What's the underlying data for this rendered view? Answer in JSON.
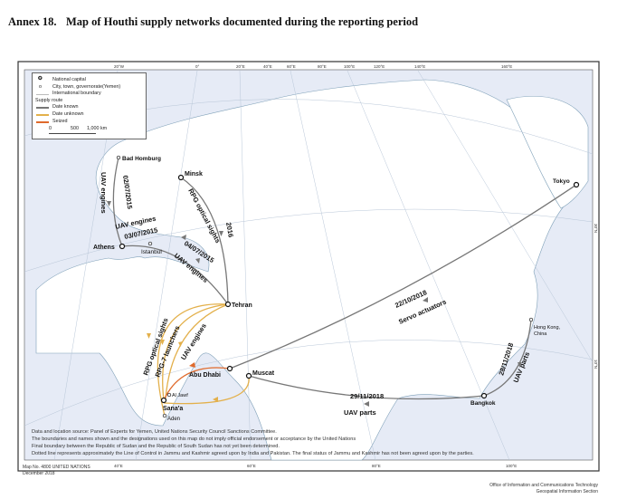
{
  "header": {
    "annex": "Annex 18.",
    "title": "Map of Houthi supply networks documented during the reporting period"
  },
  "legend": {
    "national_capital": "National capital",
    "city": "City, town, governorate(Yemen)",
    "boundary": "International boundary",
    "supply_route": "Supply route",
    "date_known": "Date known",
    "date_unknown": "Date unknown",
    "seized": "Seized",
    "scale": [
      "0",
      "500",
      "1,000 km"
    ]
  },
  "colors": {
    "date_known": "#7a7a7a",
    "date_unknown": "#e3b04b",
    "seized": "#e06a2c",
    "sea": "#e6ebf6",
    "land": "#ffffff"
  },
  "graticule": {
    "top": [
      "20°W",
      "0°",
      "20°E",
      "40°E",
      "60°E",
      "80°E",
      "100°E",
      "120°E",
      "140°E",
      "160°E"
    ],
    "bottom": [
      "40°E",
      "60°E",
      "80°E",
      "100°E"
    ],
    "right": [
      "30°N",
      "10°N"
    ]
  },
  "cities": {
    "bad_homburg": "Bad Homburg",
    "minsk": "Minsk",
    "athens": "Athens",
    "istanbul": "Istanbul",
    "tehran": "Tehran",
    "abu_dhabi": "Abu Dhabi",
    "muscat": "Muscat",
    "al_jawf": "Al Jawf",
    "sanaa": "Sana'a",
    "aden": "Aden",
    "tokyo": "Tokyo",
    "hong_kong": "Hong Kong,",
    "hong_kong2": "China",
    "bangkok": "Bangkok"
  },
  "routes": {
    "r1": {
      "item": "UAV engines",
      "date": "02/07/2015"
    },
    "r2": {
      "item": "UAV engines",
      "date": "03/07/2015"
    },
    "r3": {
      "item": "UAV engines",
      "date": "04/07/2015"
    },
    "r4": {
      "item": "RPG optical sights",
      "date": "2016"
    },
    "r5": {
      "item": "RPG optical sights"
    },
    "r6": {
      "item": "RPG-7 launchers"
    },
    "r7": {
      "item": "UAV engines"
    },
    "r8": {
      "item": "Servo actuators",
      "date": "22/10/2018"
    },
    "r9": {
      "item": "UAV parts",
      "date": "29/11/2018"
    },
    "r10": {
      "item": "UAV parts",
      "date": "28/11/2018"
    }
  },
  "notes": [
    "Data and location source: Panel of Experts for Yemen, United Nations Security Council Sanctions Committee.",
    "The boundaries and names shown and the designations used on this map do not imply official endorsement or acceptance by the United Nations",
    "Final boundary between the Republic of Sudan and the Republic of South Sudan has not yet been determined.",
    "Dotted line represents approximately the Line of Control in Jammu and Kashmir agreed upon by India and Pakistan. The final status of Jammu and Kashmir has not been agreed upon by the parties."
  ],
  "footer": {
    "map_no": "Map No. 4800 UNITED NATIONS",
    "date": "December 2018",
    "office": "Office of Information and Communications Technology",
    "section": "Geospatial Information Section"
  }
}
